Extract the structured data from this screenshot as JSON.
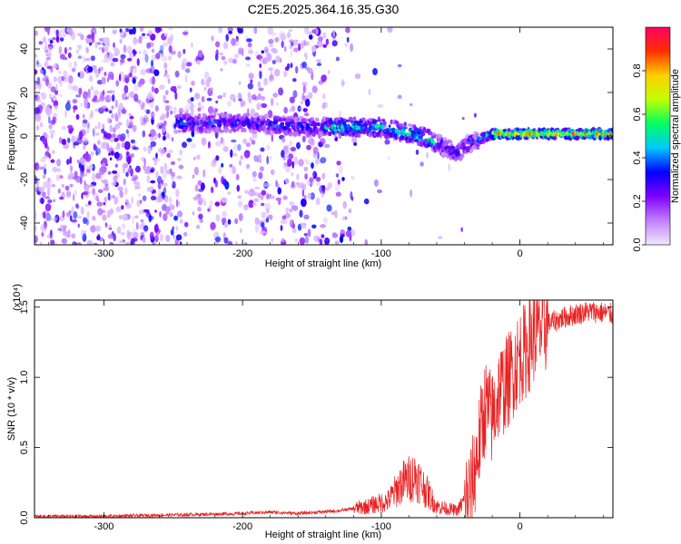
{
  "page": {
    "title": "C2E5.2025.364.16.35.G30"
  },
  "colors": {
    "snr_line": "#e82020",
    "colorbar_stops": [
      "#f0e8ff",
      "#c080ff",
      "#8000ff",
      "#0000ff",
      "#00c8ff",
      "#00ff60",
      "#c0ff00",
      "#ffd000",
      "#ff3000",
      "#ff0060"
    ]
  },
  "chart_data": [
    {
      "type": "heatmap",
      "title": "",
      "xlabel": "Height of straight line (km)",
      "ylabel": "Frequency (Hz)",
      "xlim": [
        -350,
        67
      ],
      "ylim": [
        -50,
        50
      ],
      "x_ticks": [
        -300,
        -200,
        -100,
        0
      ],
      "y_ticks": [
        -40,
        -20,
        0,
        20,
        40
      ],
      "colorbar": {
        "label": "Normalized spectral amplitude",
        "range": [
          0,
          1
        ],
        "ticks": [
          "0.0",
          "0.2",
          "0.4",
          "0.6",
          "0.8"
        ]
      },
      "ridge": {
        "description_points_x": [
          -245,
          -200,
          -150,
          -100,
          -70,
          -45,
          -35,
          -20,
          0,
          67
        ],
        "description_points_y": [
          6,
          6,
          4,
          4,
          0,
          -8,
          -3,
          1,
          1,
          1
        ]
      }
    },
    {
      "type": "line",
      "title": "",
      "xlabel": "Height of straight line (km)",
      "ylabel": "SNR (10 * v/v)",
      "y_scale_label": "(x10⁴)",
      "xlim": [
        -350,
        67
      ],
      "ylim": [
        0,
        1.55
      ],
      "x_ticks": [
        -300,
        -200,
        -100,
        0
      ],
      "y_ticks": [
        "0.0",
        "0.5",
        "1.0",
        "1.5"
      ],
      "series": [
        {
          "x": [
            -350,
            -300,
            -250,
            -200,
            -180,
            -160,
            -130,
            -110,
            -95,
            -85,
            -75,
            -60,
            -45,
            -35,
            -30,
            -25,
            -20,
            -15,
            -10,
            -5,
            0,
            5,
            10,
            20,
            30,
            40,
            50,
            60,
            67
          ],
          "y": [
            0.01,
            0.01,
            0.02,
            0.03,
            0.04,
            0.03,
            0.05,
            0.08,
            0.12,
            0.25,
            0.3,
            0.08,
            0.05,
            0.2,
            0.5,
            0.8,
            0.7,
            0.9,
            0.95,
            1.05,
            1.15,
            1.2,
            1.3,
            1.38,
            1.42,
            1.45,
            1.47,
            1.46,
            1.45
          ]
        }
      ]
    }
  ]
}
